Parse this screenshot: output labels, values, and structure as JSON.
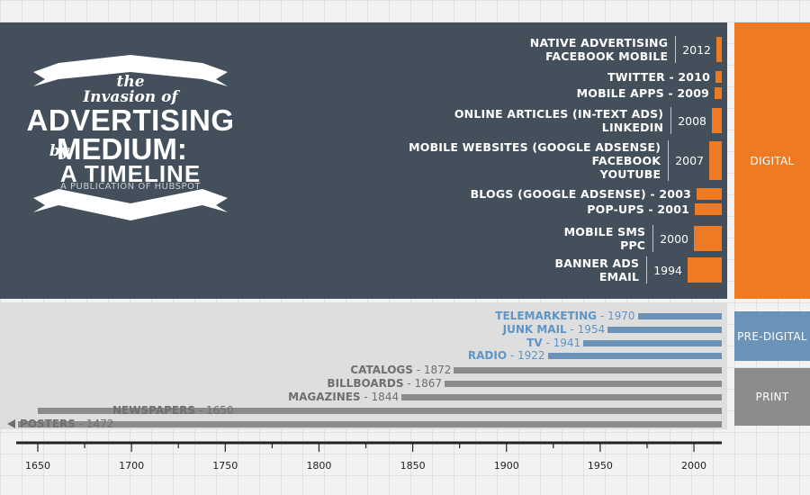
{
  "title": {
    "the": "the",
    "invasion": "Invasion of",
    "advertising": "ADVERTISING",
    "by": "by",
    "medium": "MEDIUM:",
    "timeline": "A TIMELINE",
    "publisher": "A PUBLICATION OF HUBSPOT"
  },
  "categories": {
    "digital": "DIGITAL",
    "predigital": "PRE-DIGITAL",
    "print": "PRINT"
  },
  "digital_media": [
    {
      "labels": [
        "NATIVE ADVERTISING",
        "FACEBOOK MOBILE"
      ],
      "year": "2012"
    },
    {
      "labels": [
        "TWITTER - 2010"
      ],
      "year": ""
    },
    {
      "labels": [
        "MOBILE APPS - 2009"
      ],
      "year": ""
    },
    {
      "labels": [
        "ONLINE ARTICLES (IN-TEXT ADS)",
        "LINKEDIN"
      ],
      "year": "2008"
    },
    {
      "labels": [
        "MOBILE WEBSITES (GOOGLE ADSENSE)",
        "FACEBOOK",
        "YOUTUBE"
      ],
      "year": "2007"
    },
    {
      "labels": [
        "BLOGS (GOOGLE ADSENSE) - 2003"
      ],
      "year": ""
    },
    {
      "labels": [
        "POP-UPS - 2001"
      ],
      "year": ""
    },
    {
      "labels": [
        "MOBILE SMS",
        "PPC"
      ],
      "year": "2000"
    },
    {
      "labels": [
        "BANNER ADS",
        "EMAIL"
      ],
      "year": "1994"
    }
  ],
  "predigital_media": [
    {
      "name": "TELEMARKETING",
      "year": "1970",
      "start": 1970
    },
    {
      "name": "JUNK MAIL",
      "year": "1954",
      "start": 1954
    },
    {
      "name": "TV",
      "year": "1941",
      "start": 1941
    },
    {
      "name": "RADIO",
      "year": "1922",
      "start": 1922
    }
  ],
  "print_media": [
    {
      "name": "CATALOGS",
      "year": "1872",
      "start": 1872
    },
    {
      "name": "BILLBOARDS",
      "year": "1867",
      "start": 1867
    },
    {
      "name": "MAGAZINES",
      "year": "1844",
      "start": 1844
    },
    {
      "name": "NEWSPAPERS",
      "year": "1650",
      "start": 1650
    },
    {
      "name": "POSTERS",
      "year": "1472",
      "start": 1472
    }
  ],
  "axis": {
    "ticks": [
      "1650",
      "1700",
      "1750",
      "1800",
      "1850",
      "1900",
      "1950",
      "2000"
    ],
    "end_year": 2014
  },
  "colors": {
    "digital": "#ee7a23",
    "predigital": "#6b93b8",
    "print": "#8c8c8c",
    "panel": "#434f5b"
  }
}
